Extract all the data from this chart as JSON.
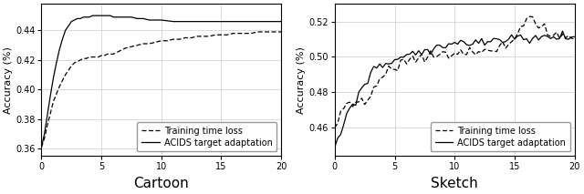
{
  "cartoon": {
    "xlabel": "Cartoon",
    "ylabel": "Accuracy (%)",
    "xlim": [
      0,
      20
    ],
    "ylim": [
      0.355,
      0.458
    ],
    "yticks": [
      0.36,
      0.38,
      0.4,
      0.42,
      0.44
    ],
    "xticks": [
      0,
      5,
      10,
      15,
      20
    ],
    "dashed_x": [
      0.0,
      0.25,
      0.5,
      0.75,
      1.0,
      1.25,
      1.5,
      1.75,
      2.0,
      2.25,
      2.5,
      2.75,
      3.0,
      3.25,
      3.5,
      3.75,
      4.0,
      4.25,
      4.5,
      4.75,
      5.0,
      5.25,
      5.5,
      5.75,
      6.0,
      6.25,
      6.5,
      6.75,
      7.0,
      7.5,
      8.0,
      8.5,
      9.0,
      9.5,
      10.0,
      10.5,
      11.0,
      11.5,
      12.0,
      12.5,
      13.0,
      13.5,
      14.0,
      14.5,
      15.0,
      15.5,
      16.0,
      16.5,
      17.0,
      17.5,
      18.0,
      18.5,
      19.0,
      19.5,
      20.0
    ],
    "dashed_y": [
      0.361,
      0.367,
      0.376,
      0.384,
      0.392,
      0.397,
      0.402,
      0.406,
      0.41,
      0.413,
      0.416,
      0.418,
      0.419,
      0.42,
      0.421,
      0.421,
      0.422,
      0.422,
      0.422,
      0.422,
      0.423,
      0.423,
      0.424,
      0.424,
      0.424,
      0.425,
      0.426,
      0.427,
      0.428,
      0.429,
      0.43,
      0.431,
      0.431,
      0.432,
      0.433,
      0.433,
      0.434,
      0.434,
      0.435,
      0.435,
      0.436,
      0.436,
      0.436,
      0.437,
      0.437,
      0.437,
      0.438,
      0.438,
      0.438,
      0.438,
      0.439,
      0.439,
      0.439,
      0.439,
      0.439
    ],
    "solid_x": [
      0.0,
      0.25,
      0.5,
      0.75,
      1.0,
      1.25,
      1.5,
      1.75,
      2.0,
      2.25,
      2.5,
      2.75,
      3.0,
      3.25,
      3.5,
      3.75,
      4.0,
      4.25,
      4.5,
      4.75,
      5.0,
      5.25,
      5.5,
      5.75,
      6.0,
      6.5,
      7.0,
      7.5,
      8.0,
      8.5,
      9.0,
      9.5,
      10.0,
      11.0,
      12.0,
      13.0,
      14.0,
      15.0,
      16.0,
      17.0,
      18.0,
      19.0,
      20.0
    ],
    "solid_y": [
      0.361,
      0.37,
      0.383,
      0.396,
      0.408,
      0.418,
      0.427,
      0.434,
      0.44,
      0.443,
      0.446,
      0.447,
      0.448,
      0.448,
      0.449,
      0.449,
      0.449,
      0.45,
      0.45,
      0.45,
      0.45,
      0.45,
      0.45,
      0.45,
      0.449,
      0.449,
      0.449,
      0.449,
      0.448,
      0.448,
      0.447,
      0.447,
      0.447,
      0.446,
      0.446,
      0.446,
      0.446,
      0.446,
      0.446,
      0.446,
      0.446,
      0.446,
      0.446
    ]
  },
  "sketch": {
    "xlabel": "Sketch",
    "ylabel": "Accuracy (%)",
    "xlim": [
      0,
      20
    ],
    "ylim": [
      0.444,
      0.53
    ],
    "yticks": [
      0.46,
      0.48,
      0.5,
      0.52
    ],
    "xticks": [
      0,
      5,
      10,
      15,
      20
    ],
    "dashed_x": [
      0.0,
      0.25,
      0.5,
      0.75,
      1.0,
      1.25,
      1.5,
      1.75,
      2.0,
      2.25,
      2.5,
      2.75,
      3.0,
      3.25,
      3.5,
      3.75,
      4.0,
      4.25,
      4.5,
      4.75,
      5.0,
      5.25,
      5.5,
      5.75,
      6.0,
      6.25,
      6.5,
      6.75,
      7.0,
      7.25,
      7.5,
      7.75,
      8.0,
      8.25,
      8.5,
      8.75,
      9.0,
      9.25,
      9.5,
      9.75,
      10.0,
      10.25,
      10.5,
      10.75,
      11.0,
      11.25,
      11.5,
      11.75,
      12.0,
      12.25,
      12.5,
      12.75,
      13.0,
      13.25,
      13.5,
      13.75,
      14.0,
      14.25,
      14.5,
      14.75,
      15.0,
      15.25,
      15.5,
      15.75,
      16.0,
      16.25,
      16.5,
      16.75,
      17.0,
      17.25,
      17.5,
      17.75,
      18.0,
      18.25,
      18.5,
      18.75,
      19.0,
      19.25,
      19.5,
      19.75,
      20.0
    ],
    "dashed_y": [
      0.46,
      0.464,
      0.468,
      0.471,
      0.473,
      0.472,
      0.471,
      0.472,
      0.473,
      0.474,
      0.475,
      0.477,
      0.48,
      0.482,
      0.484,
      0.486,
      0.488,
      0.49,
      0.491,
      0.492,
      0.493,
      0.494,
      0.496,
      0.497,
      0.498,
      0.499,
      0.5,
      0.5,
      0.5,
      0.499,
      0.5,
      0.499,
      0.5,
      0.501,
      0.501,
      0.501,
      0.502,
      0.502,
      0.502,
      0.502,
      0.502,
      0.502,
      0.502,
      0.502,
      0.502,
      0.502,
      0.503,
      0.503,
      0.503,
      0.503,
      0.503,
      0.503,
      0.504,
      0.504,
      0.504,
      0.504,
      0.505,
      0.505,
      0.506,
      0.508,
      0.511,
      0.514,
      0.518,
      0.521,
      0.523,
      0.522,
      0.521,
      0.519,
      0.517,
      0.516,
      0.515,
      0.514,
      0.513,
      0.513,
      0.513,
      0.512,
      0.512,
      0.512,
      0.511,
      0.511,
      0.511
    ],
    "solid_x": [
      0.0,
      0.25,
      0.5,
      0.75,
      1.0,
      1.25,
      1.5,
      1.75,
      2.0,
      2.25,
      2.5,
      2.75,
      3.0,
      3.25,
      3.5,
      3.75,
      4.0,
      4.25,
      4.5,
      4.75,
      5.0,
      5.25,
      5.5,
      5.75,
      6.0,
      6.25,
      6.5,
      6.75,
      7.0,
      7.25,
      7.5,
      7.75,
      8.0,
      8.25,
      8.5,
      8.75,
      9.0,
      9.25,
      9.5,
      9.75,
      10.0,
      10.25,
      10.5,
      10.75,
      11.0,
      11.25,
      11.5,
      11.75,
      12.0,
      12.25,
      12.5,
      12.75,
      13.0,
      13.25,
      13.5,
      13.75,
      14.0,
      14.25,
      14.5,
      14.75,
      15.0,
      15.25,
      15.5,
      15.75,
      16.0,
      16.25,
      16.5,
      16.75,
      17.0,
      17.25,
      17.5,
      17.75,
      18.0,
      18.25,
      18.5,
      18.75,
      19.0,
      19.25,
      19.5,
      19.75,
      20.0
    ],
    "solid_y": [
      0.449,
      0.453,
      0.458,
      0.463,
      0.467,
      0.47,
      0.473,
      0.476,
      0.479,
      0.482,
      0.485,
      0.488,
      0.49,
      0.492,
      0.493,
      0.494,
      0.495,
      0.496,
      0.497,
      0.498,
      0.499,
      0.5,
      0.501,
      0.501,
      0.502,
      0.502,
      0.503,
      0.503,
      0.503,
      0.504,
      0.504,
      0.504,
      0.505,
      0.505,
      0.505,
      0.506,
      0.506,
      0.506,
      0.507,
      0.507,
      0.507,
      0.507,
      0.508,
      0.508,
      0.508,
      0.508,
      0.508,
      0.509,
      0.509,
      0.509,
      0.509,
      0.509,
      0.51,
      0.51,
      0.51,
      0.51,
      0.51,
      0.51,
      0.511,
      0.511,
      0.511,
      0.511,
      0.511,
      0.511,
      0.511,
      0.511,
      0.511,
      0.511,
      0.511,
      0.511,
      0.511,
      0.511,
      0.511,
      0.511,
      0.511,
      0.511,
      0.511,
      0.511,
      0.511,
      0.511,
      0.511
    ]
  },
  "legend_labels": [
    "Training time loss",
    "ACIDS target adaptation"
  ],
  "line_color": "#000000",
  "grid_color": "#cccccc",
  "background_color": "#ffffff",
  "label_fontsize": 8,
  "tick_fontsize": 7,
  "legend_fontsize": 7,
  "xlabel_fontsize": 11
}
